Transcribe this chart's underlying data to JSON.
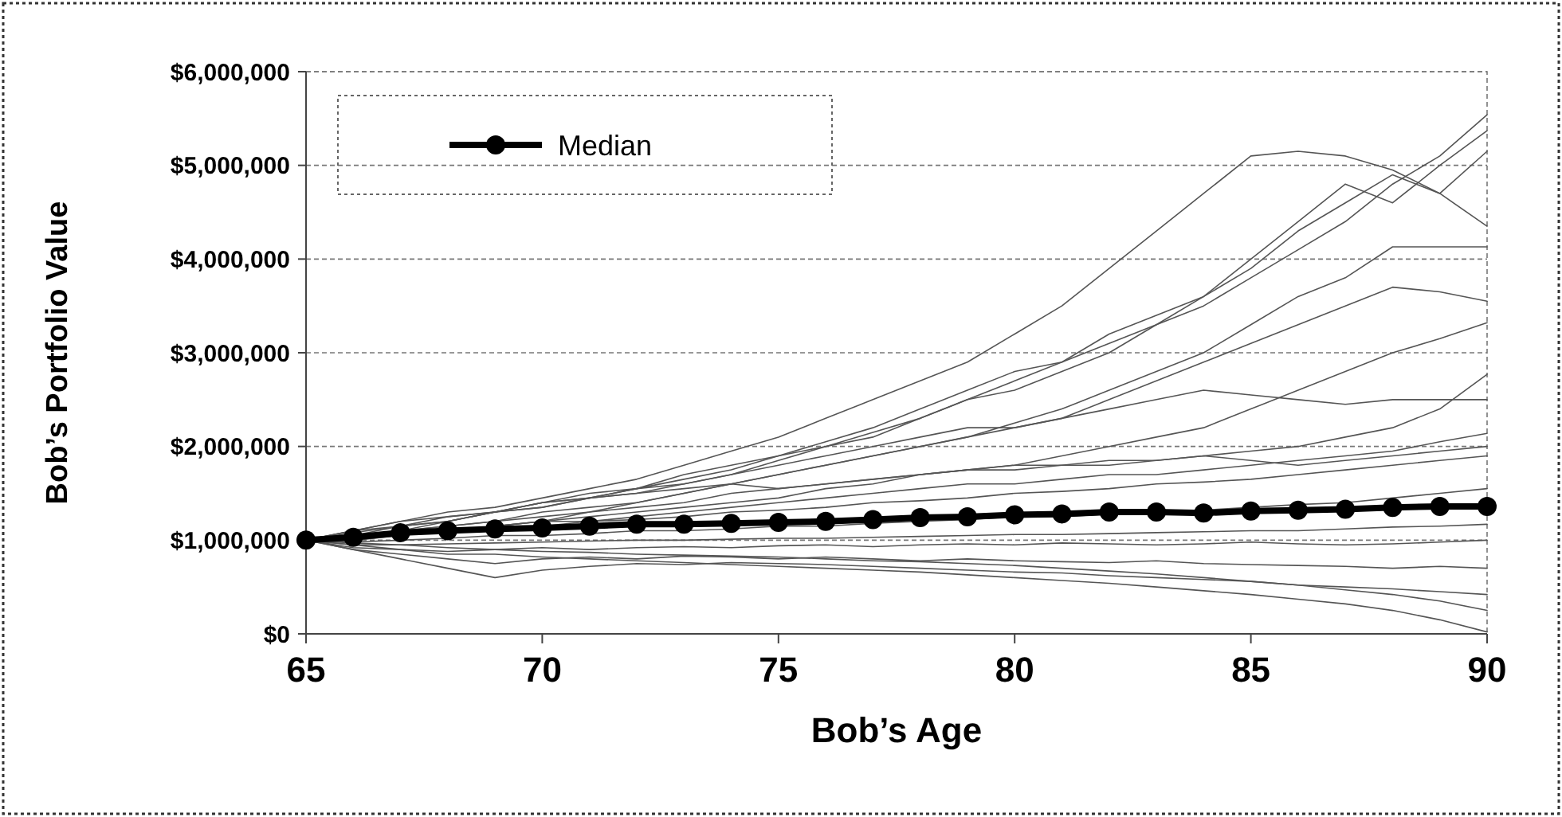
{
  "chart_data": {
    "type": "line",
    "xlabel": "Bob’s Age",
    "ylabel": "Bob’s Portfolio Value",
    "x": [
      65,
      66,
      67,
      68,
      69,
      70,
      71,
      72,
      73,
      74,
      75,
      76,
      77,
      78,
      79,
      80,
      81,
      82,
      83,
      84,
      85,
      86,
      87,
      88,
      89,
      90
    ],
    "xlim": [
      65,
      90
    ],
    "xticks": [
      65,
      70,
      75,
      80,
      85,
      90
    ],
    "ylim": [
      0,
      6000000
    ],
    "yticks": [
      {
        "value": 0,
        "label": "$0"
      },
      {
        "value": 1000000,
        "label": "$1,000,000"
      },
      {
        "value": 2000000,
        "label": "$2,000,000"
      },
      {
        "value": 3000000,
        "label": "$3,000,000"
      },
      {
        "value": 4000000,
        "label": "$4,000,000"
      },
      {
        "value": 5000000,
        "label": "$5,000,000"
      },
      {
        "value": 6000000,
        "label": "$6,000,000"
      }
    ],
    "grid": "y",
    "legend": "top left",
    "series": [
      {
        "color": "#555555",
        "marker": "none",
        "values": [
          1000000,
          1080000,
          1150000,
          1250000,
          1300000,
          1400000,
          1500000,
          1550000,
          1700000,
          1800000,
          1900000,
          2000000,
          2150000,
          2300000,
          2500000,
          2700000,
          2900000,
          3100000,
          3300000,
          3500000,
          3800000,
          4100000,
          4400000,
          4800000,
          5100000,
          5540000
        ]
      },
      {
        "color": "#555555",
        "marker": "none",
        "values": [
          1000000,
          1100000,
          1200000,
          1300000,
          1350000,
          1450000,
          1550000,
          1650000,
          1800000,
          1950000,
          2100000,
          2300000,
          2500000,
          2700000,
          2900000,
          3200000,
          3500000,
          3900000,
          4300000,
          4700000,
          5100000,
          5150000,
          5100000,
          4950000,
          4700000,
          4350000
        ]
      },
      {
        "color": "#555555",
        "marker": "none",
        "values": [
          1000000,
          1050000,
          1100000,
          1200000,
          1300000,
          1350000,
          1450000,
          1500000,
          1600000,
          1700000,
          1850000,
          2000000,
          2100000,
          2300000,
          2500000,
          2600000,
          2800000,
          3000000,
          3300000,
          3600000,
          4000000,
          4400000,
          4800000,
          4600000,
          5000000,
          5370000
        ]
      },
      {
        "color": "#555555",
        "marker": "none",
        "values": [
          1000000,
          1050000,
          1150000,
          1200000,
          1300000,
          1400000,
          1450000,
          1550000,
          1650000,
          1750000,
          1900000,
          2050000,
          2200000,
          2400000,
          2600000,
          2800000,
          2900000,
          3200000,
          3400000,
          3600000,
          3900000,
          4300000,
          4600000,
          4900000,
          4700000,
          5150000
        ]
      },
      {
        "color": "#555555",
        "marker": "none",
        "values": [
          1000000,
          1050000,
          1100000,
          1150000,
          1200000,
          1250000,
          1300000,
          1400000,
          1500000,
          1600000,
          1700000,
          1800000,
          1900000,
          2000000,
          2100000,
          2250000,
          2400000,
          2600000,
          2800000,
          3000000,
          3300000,
          3600000,
          3800000,
          4130000,
          4130000,
          4130000
        ]
      },
      {
        "color": "#555555",
        "marker": "none",
        "values": [
          1000000,
          1100000,
          1150000,
          1200000,
          1300000,
          1350000,
          1450000,
          1550000,
          1600000,
          1700000,
          1800000,
          1900000,
          2000000,
          2100000,
          2200000,
          2200000,
          2300000,
          2500000,
          2700000,
          2900000,
          3100000,
          3300000,
          3500000,
          3700000,
          3650000,
          3550000
        ]
      },
      {
        "color": "#555555",
        "marker": "none",
        "values": [
          1000000,
          1000000,
          1050000,
          1100000,
          1150000,
          1200000,
          1250000,
          1300000,
          1350000,
          1400000,
          1450000,
          1550000,
          1600000,
          1700000,
          1750000,
          1800000,
          1900000,
          2000000,
          2100000,
          2200000,
          2400000,
          2600000,
          2800000,
          3000000,
          3150000,
          3320000
        ]
      },
      {
        "color": "#555555",
        "marker": "none",
        "values": [
          1000000,
          1050000,
          1100000,
          1100000,
          1150000,
          1200000,
          1300000,
          1350000,
          1400000,
          1500000,
          1550000,
          1600000,
          1650000,
          1700000,
          1750000,
          1750000,
          1800000,
          1800000,
          1850000,
          1900000,
          1950000,
          2000000,
          2100000,
          2200000,
          2400000,
          2770000
        ]
      },
      {
        "color": "#555555",
        "marker": "none",
        "values": [
          1000000,
          1000000,
          1050000,
          1100000,
          1150000,
          1200000,
          1200000,
          1250000,
          1300000,
          1350000,
          1400000,
          1450000,
          1500000,
          1550000,
          1600000,
          1600000,
          1650000,
          1700000,
          1700000,
          1750000,
          1800000,
          1850000,
          1900000,
          1950000,
          2050000,
          2140000
        ]
      },
      {
        "color": "#555555",
        "marker": "none",
        "values": [
          1000000,
          1030000,
          1070000,
          1100000,
          1120000,
          1150000,
          1200000,
          1220000,
          1250000,
          1300000,
          1320000,
          1350000,
          1400000,
          1420000,
          1450000,
          1500000,
          1520000,
          1550000,
          1600000,
          1620000,
          1650000,
          1700000,
          1750000,
          1800000,
          1850000,
          1900000
        ]
      },
      {
        "color": "#555555",
        "marker": "none",
        "values": [
          1000000,
          980000,
          1000000,
          1020000,
          1050000,
          1050000,
          1070000,
          1100000,
          1100000,
          1120000,
          1150000,
          1150000,
          1180000,
          1200000,
          1220000,
          1250000,
          1250000,
          1280000,
          1300000,
          1320000,
          1350000,
          1380000,
          1400000,
          1450000,
          1500000,
          1550000
        ]
      },
      {
        "color": "#555555",
        "marker": "none",
        "values": [
          1000000,
          950000,
          950000,
          960000,
          970000,
          980000,
          990000,
          1000000,
          1000000,
          1010000,
          1020000,
          1020000,
          1030000,
          1040000,
          1050000,
          1060000,
          1060000,
          1070000,
          1080000,
          1090000,
          1100000,
          1100000,
          1120000,
          1140000,
          1150000,
          1170000
        ]
      },
      {
        "color": "#555555",
        "marker": "none",
        "values": [
          1000000,
          920000,
          900000,
          880000,
          900000,
          920000,
          900000,
          920000,
          930000,
          920000,
          940000,
          950000,
          930000,
          950000,
          960000,
          950000,
          970000,
          960000,
          950000,
          960000,
          980000,
          960000,
          950000,
          960000,
          980000,
          1000000
        ]
      },
      {
        "color": "#555555",
        "marker": "none",
        "values": [
          1000000,
          900000,
          850000,
          800000,
          750000,
          800000,
          820000,
          800000,
          830000,
          820000,
          800000,
          820000,
          800000,
          780000,
          800000,
          780000,
          770000,
          760000,
          780000,
          750000,
          740000,
          730000,
          720000,
          700000,
          720000,
          700000
        ]
      },
      {
        "color": "#555555",
        "marker": "none",
        "values": [
          1000000,
          900000,
          800000,
          700000,
          600000,
          680000,
          720000,
          750000,
          740000,
          760000,
          750000,
          740000,
          720000,
          700000,
          680000,
          660000,
          650000,
          620000,
          600000,
          580000,
          560000,
          520000,
          500000,
          480000,
          450000,
          420000
        ]
      },
      {
        "color": "#555555",
        "marker": "none",
        "values": [
          1000000,
          950000,
          900000,
          850000,
          850000,
          820000,
          800000,
          780000,
          760000,
          740000,
          720000,
          700000,
          680000,
          660000,
          630000,
          600000,
          570000,
          540000,
          500000,
          460000,
          420000,
          370000,
          320000,
          250000,
          150000,
          20000
        ]
      },
      {
        "color": "#555555",
        "marker": "none",
        "values": [
          1000000,
          970000,
          950000,
          920000,
          900000,
          880000,
          870000,
          850000,
          840000,
          830000,
          820000,
          800000,
          780000,
          770000,
          750000,
          730000,
          700000,
          670000,
          640000,
          600000,
          560000,
          520000,
          470000,
          420000,
          350000,
          250000
        ]
      },
      {
        "color": "#555555",
        "marker": "none",
        "values": [
          1000000,
          1100000,
          1200000,
          1250000,
          1300000,
          1400000,
          1450000,
          1500000,
          1550000,
          1600000,
          1550000,
          1600000,
          1650000,
          1700000,
          1750000,
          1800000,
          1800000,
          1850000,
          1850000,
          1900000,
          1850000,
          1800000,
          1850000,
          1900000,
          1950000,
          2000000
        ]
      },
      {
        "color": "#555555",
        "marker": "none",
        "values": [
          1000000,
          1050000,
          1100000,
          1150000,
          1200000,
          1300000,
          1350000,
          1400000,
          1500000,
          1600000,
          1700000,
          1800000,
          1900000,
          2000000,
          2100000,
          2200000,
          2300000,
          2400000,
          2500000,
          2600000,
          2550000,
          2500000,
          2450000,
          2500000,
          2500000,
          2500000
        ]
      },
      {
        "name": "Median",
        "color": "#000000",
        "marker": "circle",
        "values": [
          1000000,
          1030000,
          1080000,
          1100000,
          1120000,
          1130000,
          1150000,
          1170000,
          1170000,
          1180000,
          1190000,
          1200000,
          1220000,
          1240000,
          1250000,
          1270000,
          1280000,
          1300000,
          1300000,
          1290000,
          1310000,
          1320000,
          1330000,
          1350000,
          1360000,
          1360000
        ]
      }
    ]
  }
}
